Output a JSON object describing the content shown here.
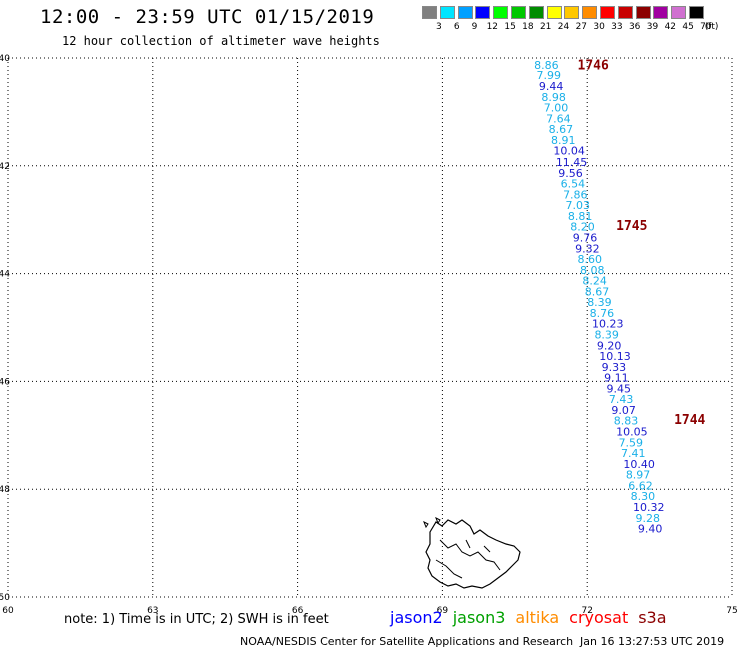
{
  "header": {
    "title": "12:00 - 23:59 UTC 01/15/2019",
    "subtitle": "12 hour collection of altimeter wave heights"
  },
  "legend": {
    "unit": "(ft)",
    "bins": [
      {
        "label": "3",
        "color": "#808080"
      },
      {
        "label": "6",
        "color": "#00e5ff"
      },
      {
        "label": "9",
        "color": "#00a0ff"
      },
      {
        "label": "12",
        "color": "#0000ff"
      },
      {
        "label": "15",
        "color": "#00ff00"
      },
      {
        "label": "18",
        "color": "#00c800"
      },
      {
        "label": "21",
        "color": "#008c00"
      },
      {
        "label": "24",
        "color": "#ffff00"
      },
      {
        "label": "27",
        "color": "#ffc800"
      },
      {
        "label": "30",
        "color": "#ff8c00"
      },
      {
        "label": "33",
        "color": "#ff0000"
      },
      {
        "label": "36",
        "color": "#c80000"
      },
      {
        "label": "39",
        "color": "#8c0000"
      },
      {
        "label": "42",
        "color": "#a000a0"
      },
      {
        "label": "45",
        "color": "#d070d0"
      },
      {
        "label": "70",
        "color": "#000000"
      }
    ]
  },
  "map": {
    "lon_range": [
      60,
      75
    ],
    "lat_range": [
      -50,
      -40
    ],
    "lon_ticks": [
      "60",
      "63",
      "66",
      "69",
      "72",
      "75"
    ],
    "lat_ticks": [
      "-40",
      "-42",
      "-44",
      "-46",
      "-48",
      "-50"
    ],
    "colors": {
      "light": "#1ab0e8",
      "dark": "#1a1acc",
      "time": "#8b0000",
      "grid": "#000000",
      "land": "#000000"
    },
    "times": [
      {
        "label": "1746",
        "lon": 71.8,
        "lat": -40.12
      },
      {
        "label": "1745",
        "lon": 72.6,
        "lat": -43.1
      },
      {
        "label": "1744",
        "lon": 73.8,
        "lat": -46.7
      }
    ],
    "track": [
      {
        "v": "8.86",
        "lon": 70.9,
        "lat": -40.13,
        "c": "light"
      },
      {
        "v": "7.99",
        "lon": 70.95,
        "lat": -40.32,
        "c": "light"
      },
      {
        "v": "9.44",
        "lon": 71.0,
        "lat": -40.52,
        "c": "dark"
      },
      {
        "v": "8.98",
        "lon": 71.05,
        "lat": -40.72,
        "c": "light"
      },
      {
        "v": "7.00",
        "lon": 71.1,
        "lat": -40.92,
        "c": "light"
      },
      {
        "v": "7.64",
        "lon": 71.15,
        "lat": -41.12,
        "c": "light"
      },
      {
        "v": "8.67",
        "lon": 71.2,
        "lat": -41.32,
        "c": "light"
      },
      {
        "v": "8.91",
        "lon": 71.25,
        "lat": -41.52,
        "c": "light"
      },
      {
        "v": "10.04",
        "lon": 71.3,
        "lat": -41.72,
        "c": "dark"
      },
      {
        "v": "11.45",
        "lon": 71.35,
        "lat": -41.93,
        "c": "dark"
      },
      {
        "v": "9.56",
        "lon": 71.4,
        "lat": -42.13,
        "c": "dark"
      },
      {
        "v": "6.54",
        "lon": 71.45,
        "lat": -42.33,
        "c": "light"
      },
      {
        "v": "7.86",
        "lon": 71.5,
        "lat": -42.53,
        "c": "light"
      },
      {
        "v": "7.03",
        "lon": 71.55,
        "lat": -42.73,
        "c": "light"
      },
      {
        "v": "8.81",
        "lon": 71.6,
        "lat": -42.93,
        "c": "light"
      },
      {
        "v": "8.20",
        "lon": 71.65,
        "lat": -43.13,
        "c": "light"
      },
      {
        "v": "9.76",
        "lon": 71.7,
        "lat": -43.33,
        "c": "dark"
      },
      {
        "v": "9.32",
        "lon": 71.75,
        "lat": -43.53,
        "c": "dark"
      },
      {
        "v": "8.60",
        "lon": 71.8,
        "lat": -43.73,
        "c": "light"
      },
      {
        "v": "8.08",
        "lon": 71.85,
        "lat": -43.93,
        "c": "light"
      },
      {
        "v": "8.24",
        "lon": 71.9,
        "lat": -44.13,
        "c": "light"
      },
      {
        "v": "8.67",
        "lon": 71.95,
        "lat": -44.33,
        "c": "light"
      },
      {
        "v": "8.39",
        "lon": 72.0,
        "lat": -44.53,
        "c": "light"
      },
      {
        "v": "8.76",
        "lon": 72.05,
        "lat": -44.73,
        "c": "light"
      },
      {
        "v": "10.23",
        "lon": 72.1,
        "lat": -44.93,
        "c": "dark"
      },
      {
        "v": "8.39",
        "lon": 72.15,
        "lat": -45.13,
        "c": "light"
      },
      {
        "v": "9.20",
        "lon": 72.2,
        "lat": -45.33,
        "c": "dark"
      },
      {
        "v": "10.13",
        "lon": 72.25,
        "lat": -45.53,
        "c": "dark"
      },
      {
        "v": "9.33",
        "lon": 72.3,
        "lat": -45.73,
        "c": "dark"
      },
      {
        "v": "9.11",
        "lon": 72.35,
        "lat": -45.93,
        "c": "dark"
      },
      {
        "v": "9.45",
        "lon": 72.4,
        "lat": -46.13,
        "c": "dark"
      },
      {
        "v": "7.43",
        "lon": 72.45,
        "lat": -46.33,
        "c": "light"
      },
      {
        "v": "9.07",
        "lon": 72.5,
        "lat": -46.53,
        "c": "dark"
      },
      {
        "v": "8.83",
        "lon": 72.55,
        "lat": -46.73,
        "c": "light"
      },
      {
        "v": "10.05",
        "lon": 72.6,
        "lat": -46.93,
        "c": "dark"
      },
      {
        "v": "7.59",
        "lon": 72.65,
        "lat": -47.13,
        "c": "light"
      },
      {
        "v": "7.41",
        "lon": 72.7,
        "lat": -47.33,
        "c": "light"
      },
      {
        "v": "10.40",
        "lon": 72.75,
        "lat": -47.53,
        "c": "dark"
      },
      {
        "v": "8.97",
        "lon": 72.8,
        "lat": -47.73,
        "c": "light"
      },
      {
        "v": "6.62",
        "lon": 72.85,
        "lat": -47.93,
        "c": "light"
      },
      {
        "v": "8.30",
        "lon": 72.9,
        "lat": -48.13,
        "c": "light"
      },
      {
        "v": "10.32",
        "lon": 72.95,
        "lat": -48.33,
        "c": "dark"
      },
      {
        "v": "9.28",
        "lon": 73.0,
        "lat": -48.53,
        "c": "light"
      },
      {
        "v": "9.40",
        "lon": 73.05,
        "lat": -48.73,
        "c": "dark"
      }
    ]
  },
  "note": "note: 1) Time is in UTC; 2) SWH is in feet",
  "satellites": [
    {
      "name": "jason2",
      "color": "#0000ff"
    },
    {
      "name": "jason3",
      "color": "#00a000"
    },
    {
      "name": "altika",
      "color": "#ff8c00"
    },
    {
      "name": "cryosat",
      "color": "#ff0000"
    },
    {
      "name": "s3a",
      "color": "#8b0000"
    }
  ],
  "footer": {
    "agency": "NOAA/NESDIS Center for Satellite Applications and Research",
    "timestamp": "Jan 16 13:27:53 UTC 2019"
  }
}
